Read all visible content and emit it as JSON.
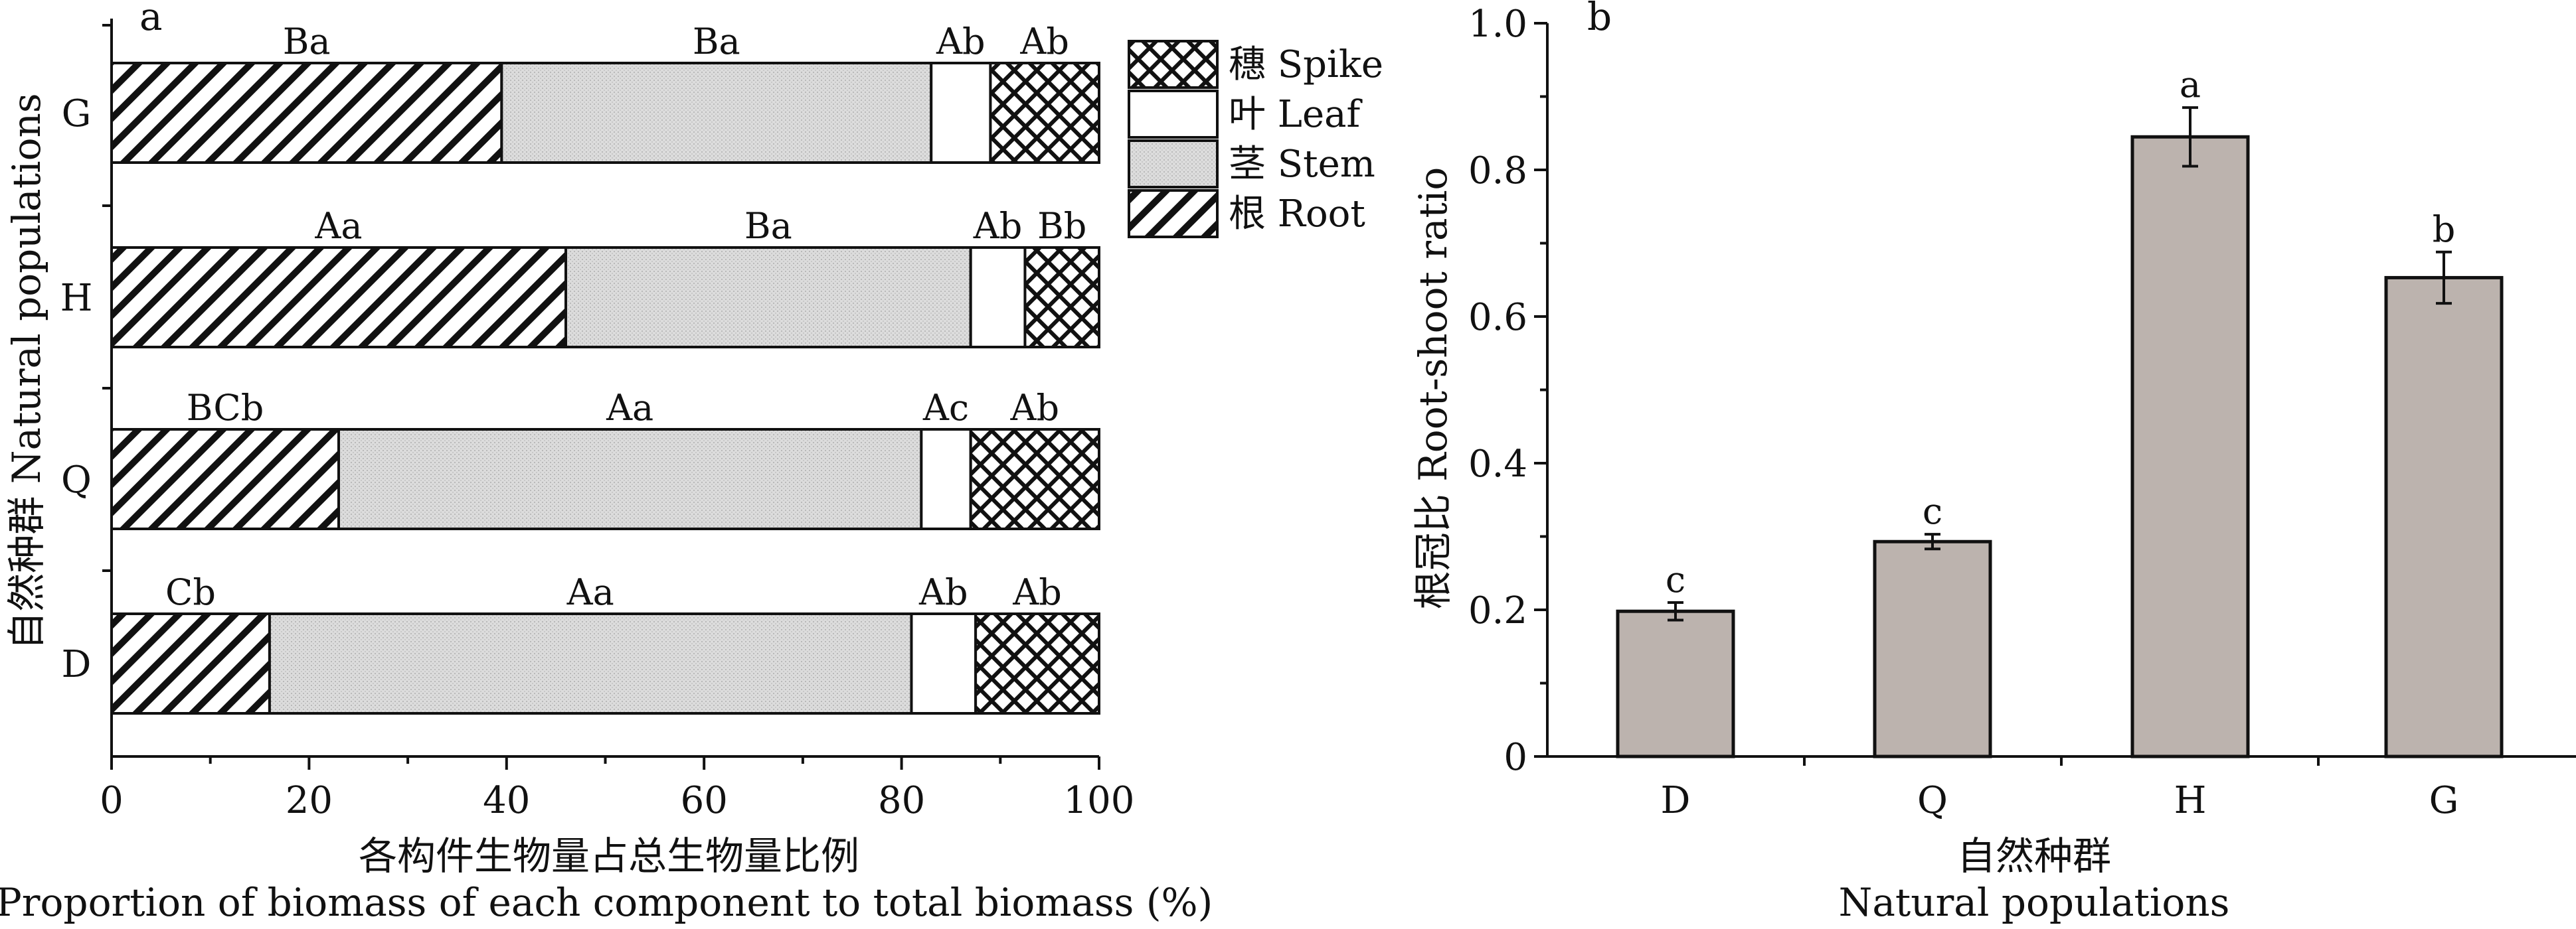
{
  "panel_a": {
    "panel_label": "a",
    "ylabel": "自然种群 Natural populations",
    "xlabel_cn": "各构件生物量占总生物量比例",
    "xlabel_en": "Proportion of biomass of each component to total biomass (%)",
    "legend": [
      {
        "cn": "穗",
        "en": "Spike"
      },
      {
        "cn": "叶",
        "en": "Leaf"
      },
      {
        "cn": "茎",
        "en": "Stem"
      },
      {
        "cn": "根",
        "en": "Root"
      }
    ]
  },
  "panel_b": {
    "panel_label": "b",
    "ylabel": "根冠比 Root-shoot ratio",
    "xlabel_cn": "自然种群",
    "xlabel_en": "Natural populations"
  },
  "colors": {
    "bar_fill": "#bcb3ae",
    "stem_fill": "#dcdcdc",
    "stroke": "#111111"
  },
  "chart_data": [
    {
      "type": "bar",
      "orientation": "horizontal",
      "stacked": true,
      "categories": [
        "G",
        "H",
        "Q",
        "D"
      ],
      "xlim": [
        0,
        100
      ],
      "xticks": [
        0,
        20,
        40,
        60,
        80,
        100
      ],
      "series": [
        {
          "name": "根 Root",
          "pattern": "diagonal-hatch",
          "values": [
            39.5,
            46,
            23,
            16
          ],
          "labels": [
            "Ba",
            "Aa",
            "BCb",
            "Cb"
          ]
        },
        {
          "name": "茎 Stem",
          "pattern": "light-gray-stipple",
          "values": [
            43.5,
            41,
            59,
            65
          ],
          "labels": [
            "Ba",
            "Ba",
            "Aa",
            "Aa"
          ]
        },
        {
          "name": "叶 Leaf",
          "pattern": "white",
          "values": [
            6,
            5.5,
            5,
            6.5
          ],
          "labels": [
            "Ab",
            "Ab",
            "Ac",
            "Ab"
          ]
        },
        {
          "name": "穗 Spike",
          "pattern": "crosshatch",
          "values": [
            11,
            7.5,
            13,
            12.5
          ],
          "labels": [
            "Ab",
            "Bb",
            "Ab",
            "Ab"
          ]
        }
      ],
      "grid": false
    },
    {
      "type": "bar",
      "categories": [
        "D",
        "Q",
        "H",
        "G"
      ],
      "values": [
        0.198,
        0.293,
        0.845,
        0.653
      ],
      "errors": [
        0.012,
        0.01,
        0.04,
        0.035
      ],
      "labels": [
        "c",
        "c",
        "a",
        "b"
      ],
      "ylim": [
        0,
        1.0
      ],
      "yticks": [
        "0",
        "0.2",
        "0.4",
        "0.6",
        "0.8",
        "1.0"
      ],
      "grid": false
    }
  ]
}
